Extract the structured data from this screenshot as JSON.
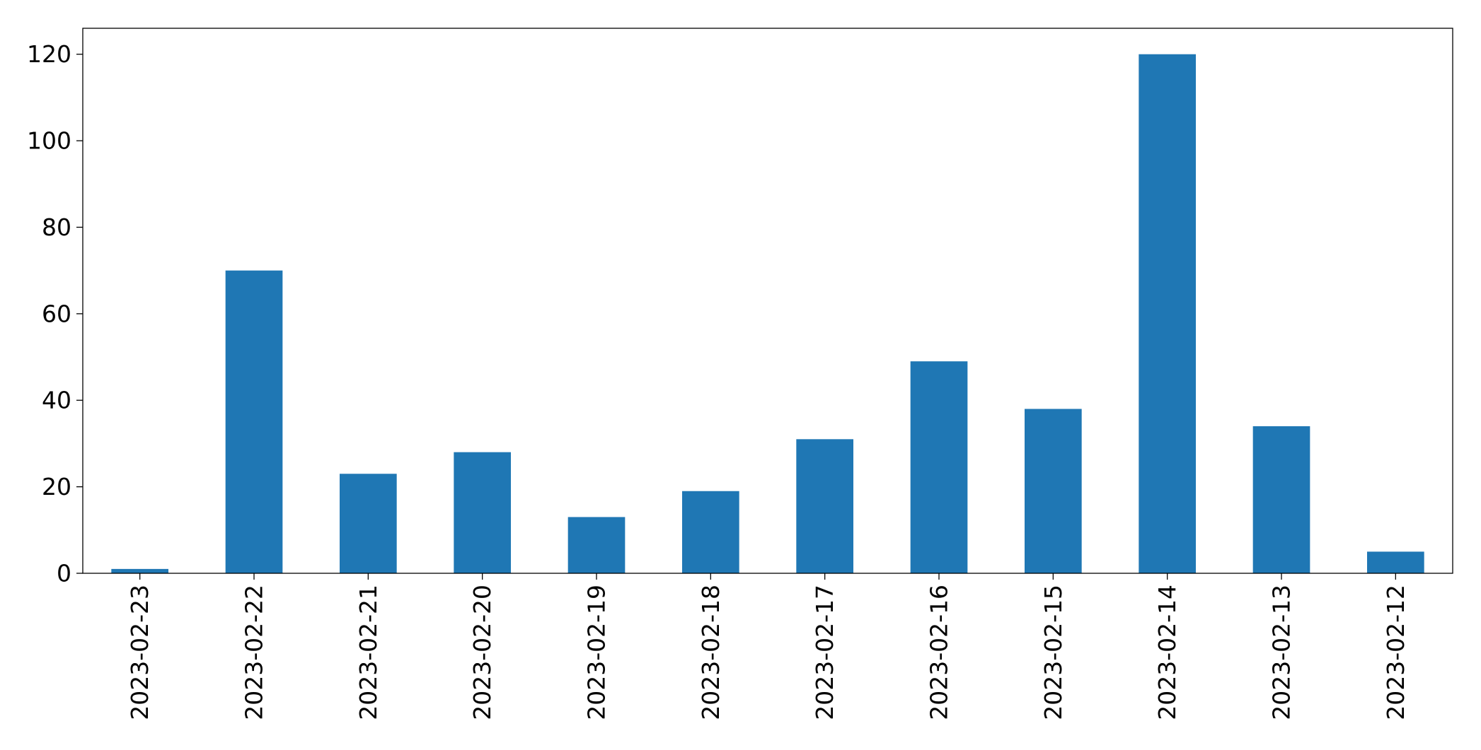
{
  "chart_data": {
    "type": "bar",
    "title": "",
    "xlabel": "",
    "ylabel": "",
    "categories": [
      "2023-02-23",
      "2023-02-22",
      "2023-02-21",
      "2023-02-20",
      "2023-02-19",
      "2023-02-18",
      "2023-02-17",
      "2023-02-16",
      "2023-02-15",
      "2023-02-14",
      "2023-02-13",
      "2023-02-12"
    ],
    "values": [
      1,
      70,
      23,
      28,
      13,
      19,
      31,
      49,
      38,
      120,
      34,
      5
    ],
    "ylim": [
      0,
      126
    ],
    "yticks": [
      0,
      20,
      40,
      60,
      80,
      100,
      120
    ],
    "bar_color": "#1f77b4",
    "grid": false,
    "legend": "none",
    "xtick_rotation": "vertical"
  }
}
